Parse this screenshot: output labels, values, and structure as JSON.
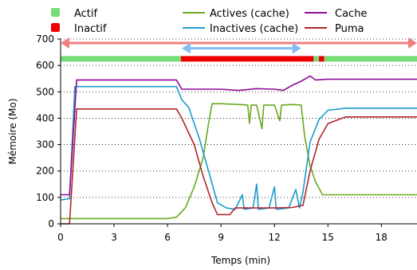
{
  "chart_data": {
    "type": "line",
    "xlabel": "Temps (min)",
    "ylabel": "Mémoire (Mo)",
    "xlim": [
      0,
      20
    ],
    "ylim": [
      0,
      700
    ],
    "x_ticks": [
      0,
      3,
      6,
      9,
      12,
      15,
      18
    ],
    "y_ticks": [
      0,
      100,
      200,
      300,
      400,
      500,
      600,
      700
    ],
    "grid": "horizontal-dotted",
    "state_bar": {
      "y": 625,
      "legend": [
        {
          "name": "Actif",
          "color": "#77dd77"
        },
        {
          "name": "Inactif",
          "color": "#ee0000"
        }
      ],
      "segments": [
        {
          "state": "Actif",
          "from": 0,
          "to": 6.75
        },
        {
          "state": "Inactif",
          "from": 6.75,
          "to": 14.2
        },
        {
          "state": "Actif",
          "from": 14.2,
          "to": 14.5
        },
        {
          "state": "Inactif",
          "from": 14.5,
          "to": 14.8
        },
        {
          "state": "Actif",
          "from": 14.8,
          "to": 20
        }
      ]
    },
    "arrows": [
      {
        "from": 0,
        "to": 20,
        "y": 685,
        "color": "#f08080"
      },
      {
        "from": 6.8,
        "to": 13.5,
        "y": 665,
        "color": "#87bdf5"
      }
    ],
    "series": [
      {
        "name": "Actives (cache)",
        "color": "#6aaa1e",
        "points": [
          [
            0,
            20
          ],
          [
            6,
            20
          ],
          [
            6.5,
            25
          ],
          [
            7,
            60
          ],
          [
            7.5,
            140
          ],
          [
            8,
            250
          ],
          [
            8.3,
            380
          ],
          [
            8.5,
            455
          ],
          [
            9,
            455
          ],
          [
            10,
            452
          ],
          [
            10.5,
            450
          ],
          [
            10.6,
            380
          ],
          [
            10.7,
            450
          ],
          [
            11,
            450
          ],
          [
            11.3,
            360
          ],
          [
            11.4,
            450
          ],
          [
            12,
            450
          ],
          [
            12.3,
            390
          ],
          [
            12.4,
            450
          ],
          [
            13,
            452
          ],
          [
            13.5,
            450
          ],
          [
            13.7,
            330
          ],
          [
            14,
            220
          ],
          [
            14.3,
            160
          ],
          [
            14.7,
            110
          ],
          [
            20,
            110
          ]
        ]
      },
      {
        "name": "Inactives (cache)",
        "color": "#1a9ccf",
        "points": [
          [
            0,
            90
          ],
          [
            0.5,
            95
          ],
          [
            0.8,
            520
          ],
          [
            6.5,
            520
          ],
          [
            6.8,
            470
          ],
          [
            7.2,
            440
          ],
          [
            7.8,
            320
          ],
          [
            8.3,
            200
          ],
          [
            8.8,
            80
          ],
          [
            9.3,
            60
          ],
          [
            9.8,
            55
          ],
          [
            10.2,
            110
          ],
          [
            10.3,
            55
          ],
          [
            10.8,
            60
          ],
          [
            11,
            150
          ],
          [
            11.1,
            55
          ],
          [
            11.7,
            60
          ],
          [
            12,
            140
          ],
          [
            12.1,
            55
          ],
          [
            12.8,
            60
          ],
          [
            13.2,
            130
          ],
          [
            13.4,
            60
          ],
          [
            13.6,
            120
          ],
          [
            14,
            310
          ],
          [
            14.5,
            395
          ],
          [
            15,
            430
          ],
          [
            16,
            438
          ],
          [
            20,
            438
          ]
        ]
      },
      {
        "name": "Cache",
        "color": "#8e0b95",
        "points": [
          [
            0,
            110
          ],
          [
            0.5,
            110
          ],
          [
            0.9,
            545
          ],
          [
            6.5,
            545
          ],
          [
            6.8,
            510
          ],
          [
            9,
            510
          ],
          [
            10,
            505
          ],
          [
            11,
            512
          ],
          [
            12,
            510
          ],
          [
            12.5,
            505
          ],
          [
            13,
            525
          ],
          [
            13.5,
            540
          ],
          [
            14,
            560
          ],
          [
            14.3,
            545
          ],
          [
            15,
            548
          ],
          [
            16,
            548
          ],
          [
            20,
            548
          ]
        ]
      },
      {
        "name": "Puma",
        "color": "#b0262c",
        "points": [
          [
            0,
            0
          ],
          [
            0.5,
            0
          ],
          [
            0.9,
            435
          ],
          [
            6.5,
            435
          ],
          [
            6.8,
            400
          ],
          [
            7.5,
            300
          ],
          [
            8,
            180
          ],
          [
            8.5,
            80
          ],
          [
            8.8,
            35
          ],
          [
            9.5,
            35
          ],
          [
            9.8,
            60
          ],
          [
            11,
            60
          ],
          [
            12,
            60
          ],
          [
            13,
            62
          ],
          [
            13.6,
            70
          ],
          [
            14,
            200
          ],
          [
            14.5,
            320
          ],
          [
            15,
            380
          ],
          [
            16,
            405
          ],
          [
            20,
            405
          ]
        ]
      }
    ]
  }
}
